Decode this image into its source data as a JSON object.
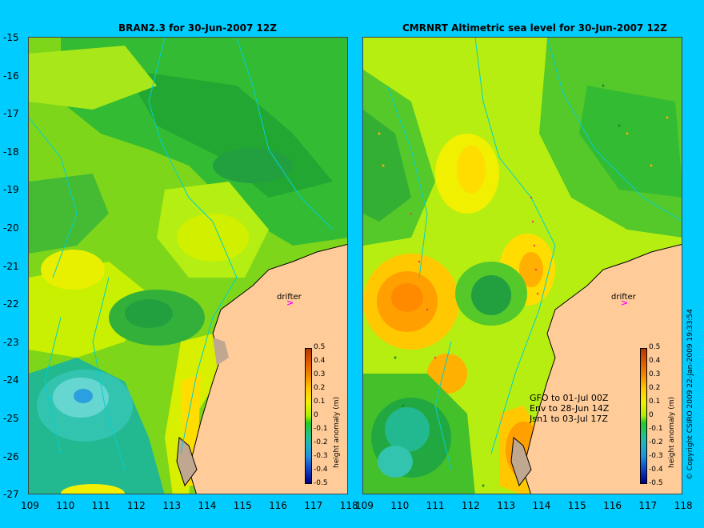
{
  "left_panel": {
    "title": "BRAN2.3 for 30-Jun-2007 12Z",
    "drifter_label": "drifter"
  },
  "right_panel": {
    "title": "CMRNRT Altimetric sea level  for 30-Jun-2007 12Z",
    "drifter_label": "drifter",
    "legend_lines": [
      "GFO to 01-Jul 00Z",
      "Env to 28-Jun 14Z",
      "Jsn1 to 03-Jul 17Z"
    ]
  },
  "y_axis_labels": [
    "-15",
    "-16",
    "-17",
    "-18",
    "-19",
    "-20",
    "-21",
    "-22",
    "-23",
    "-24",
    "-25",
    "-26",
    "-27"
  ],
  "x_axis_labels": [
    "109",
    "110",
    "111",
    "112",
    "113",
    "114",
    "115",
    "116",
    "117",
    "118"
  ],
  "colorbar": {
    "title": "height anomaly (m)",
    "labels": [
      "0.5",
      "0.4",
      "0.3",
      "0.2",
      "0.1",
      "0",
      "-0.1",
      "-0.2",
      "-0.3",
      "-0.4",
      "-0.5"
    ]
  },
  "copyright": "© Copyright CSIRO 2009   22-Jan-2009 19:33:54",
  "colors": {
    "background": "#00ccff",
    "land": "#ffcc99",
    "sea_mid": "#66dd22",
    "drifter": "#ff00ff"
  }
}
